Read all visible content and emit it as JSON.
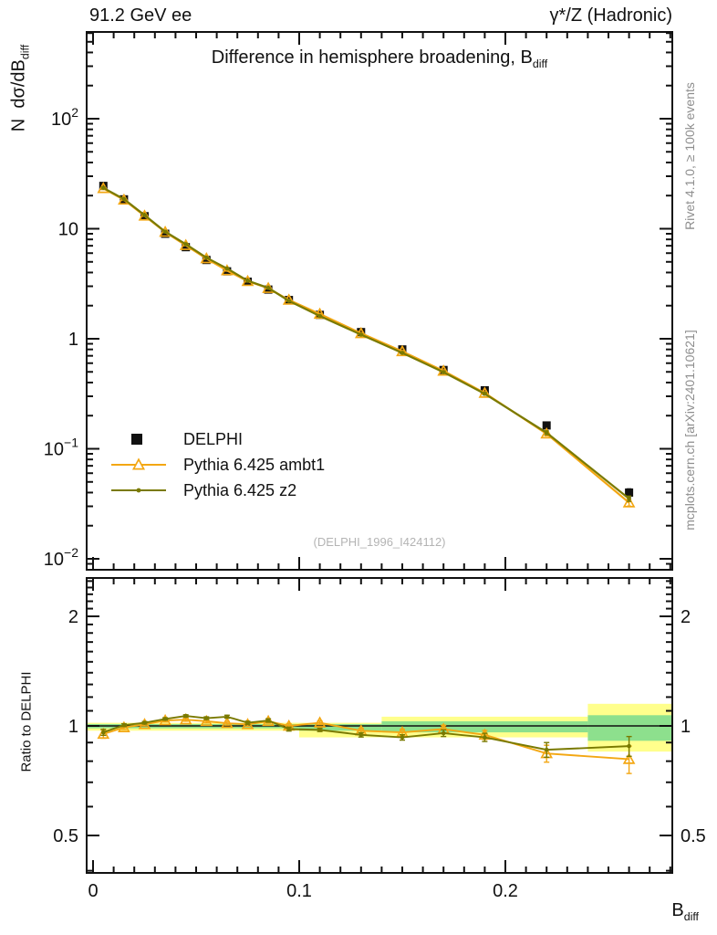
{
  "header": {
    "left": "91.2 GeV ee",
    "right": "γ*/Z (Hadronic)"
  },
  "title": {
    "text": "Difference in hemisphere broadening, B",
    "sub": "diff"
  },
  "axis_labels": {
    "y_main": "N  dσ/dB",
    "y_sub": "diff",
    "x_main": "B",
    "x_sub": "diff",
    "ratio": "Ratio to DELPHI"
  },
  "watermark": "(DELPHI_1996_I424112)",
  "side_notes": {
    "top": "Rivet 4.1.0, ≥ 100k events",
    "bottom": "mcplots.cern.ch [arXiv:2401.10621]"
  },
  "legend": {
    "items": [
      {
        "label": "DELPHI",
        "marker": "square",
        "color": "#111111"
      },
      {
        "label": "Pythia 6.425 ambt1",
        "marker": "triangle-open",
        "color": "#f3a713"
      },
      {
        "label": "Pythia 6.425 z2",
        "marker": "dot",
        "color": "#7a7a01"
      }
    ]
  },
  "chart_data": {
    "type": "line",
    "title": "Difference in hemisphere broadening, B_diff",
    "xlabel": "B_diff",
    "ylabel": "N dσ/dB_diff",
    "ratio_label": "Ratio to DELPHI",
    "x_scale": "linear",
    "y_scale": "log",
    "xlim": [
      -0.0031,
      0.281
    ],
    "ylim": [
      0.008,
      615
    ],
    "ratio_ylim": [
      0.394,
      2.55
    ],
    "x_major_ticks": [
      0,
      0.1,
      0.2
    ],
    "x_tick_labels": [
      "0",
      "0.1",
      "0.2"
    ],
    "x_minor_step": 0.01,
    "y_major_ticks": [
      100,
      10,
      1,
      0.1,
      0.01
    ],
    "y_tick_labels": [
      [
        "10",
        "2"
      ],
      [
        "10",
        ""
      ],
      [
        "1",
        ""
      ],
      [
        "10",
        "−1"
      ],
      [
        "10",
        "−2"
      ]
    ],
    "ratio_major_ticks": [
      2,
      1,
      0.5
    ],
    "ratio_tick_labels": [
      "2",
      "1",
      "0.5"
    ],
    "x": [
      0.005,
      0.015,
      0.025,
      0.035,
      0.045,
      0.055,
      0.065,
      0.075,
      0.085,
      0.095,
      0.11,
      0.13,
      0.15,
      0.17,
      0.19,
      0.22,
      0.26
    ],
    "series": [
      {
        "name": "DELPHI",
        "role": "data",
        "color": "#111111",
        "marker": "square",
        "values": [
          24.5,
          18.5,
          13.0,
          9.0,
          6.8,
          5.2,
          4.1,
          3.3,
          2.8,
          2.25,
          1.65,
          1.15,
          0.8,
          0.52,
          0.34,
          0.163,
          0.04
        ],
        "err_frac": [
          0.04,
          0.02,
          0.02,
          0.02,
          0.02,
          0.02,
          0.02,
          0.02,
          0.025,
          0.025,
          0.025,
          0.03,
          0.03,
          0.035,
          0.04,
          0.05,
          0.08
        ]
      },
      {
        "name": "Pythia 6.425 ambt1",
        "role": "mc",
        "color": "#f3a713",
        "marker": "triangle-open",
        "values": [
          23.3,
          18.3,
          13.1,
          9.32,
          7.07,
          5.36,
          4.17,
          3.33,
          2.88,
          2.25,
          1.68,
          1.12,
          0.768,
          0.51,
          0.321,
          0.137,
          0.0324
        ],
        "ratio": [
          0.95,
          0.99,
          1.01,
          1.035,
          1.04,
          1.03,
          1.017,
          1.01,
          1.03,
          1.0,
          1.02,
          0.97,
          0.96,
          0.98,
          0.945,
          0.84,
          0.81
        ],
        "ratio_err": [
          0.025,
          0.012,
          0.01,
          0.01,
          0.01,
          0.011,
          0.012,
          0.012,
          0.013,
          0.014,
          0.012,
          0.015,
          0.018,
          0.024,
          0.027,
          0.045,
          0.07
        ]
      },
      {
        "name": "Pythia 6.425 z2",
        "role": "mc",
        "color": "#7a7a01",
        "marker": "dot",
        "values": [
          23.5,
          18.6,
          13.3,
          9.41,
          7.24,
          5.46,
          4.35,
          3.37,
          2.9,
          2.21,
          1.61,
          1.09,
          0.744,
          0.497,
          0.316,
          0.14,
          0.0352
        ],
        "ratio": [
          0.96,
          1.005,
          1.02,
          1.045,
          1.065,
          1.05,
          1.06,
          1.02,
          1.035,
          0.98,
          0.975,
          0.945,
          0.93,
          0.955,
          0.93,
          0.86,
          0.88
        ],
        "ratio_err": [
          0.018,
          0.009,
          0.008,
          0.008,
          0.008,
          0.009,
          0.01,
          0.01,
          0.011,
          0.012,
          0.01,
          0.013,
          0.016,
          0.02,
          0.024,
          0.04,
          0.055
        ]
      }
    ],
    "uncertainty_bands": {
      "outer_color": "#ffff8c",
      "inner_color": "#8de08d",
      "reference_line": 1.0,
      "segments": [
        {
          "x0": -0.0031,
          "x1": 0.1,
          "outer": [
            0.97,
            1.02
          ],
          "inner": [
            0.985,
            1.012
          ]
        },
        {
          "x0": 0.1,
          "x1": 0.14,
          "outer": [
            0.93,
            1.02
          ],
          "inner": [
            0.97,
            1.012
          ]
        },
        {
          "x0": 0.14,
          "x1": 0.24,
          "outer": [
            0.93,
            1.06
          ],
          "inner": [
            0.96,
            1.03
          ]
        },
        {
          "x0": 0.24,
          "x1": 0.281,
          "outer": [
            0.85,
            1.15
          ],
          "inner": [
            0.91,
            1.07
          ]
        }
      ]
    }
  }
}
